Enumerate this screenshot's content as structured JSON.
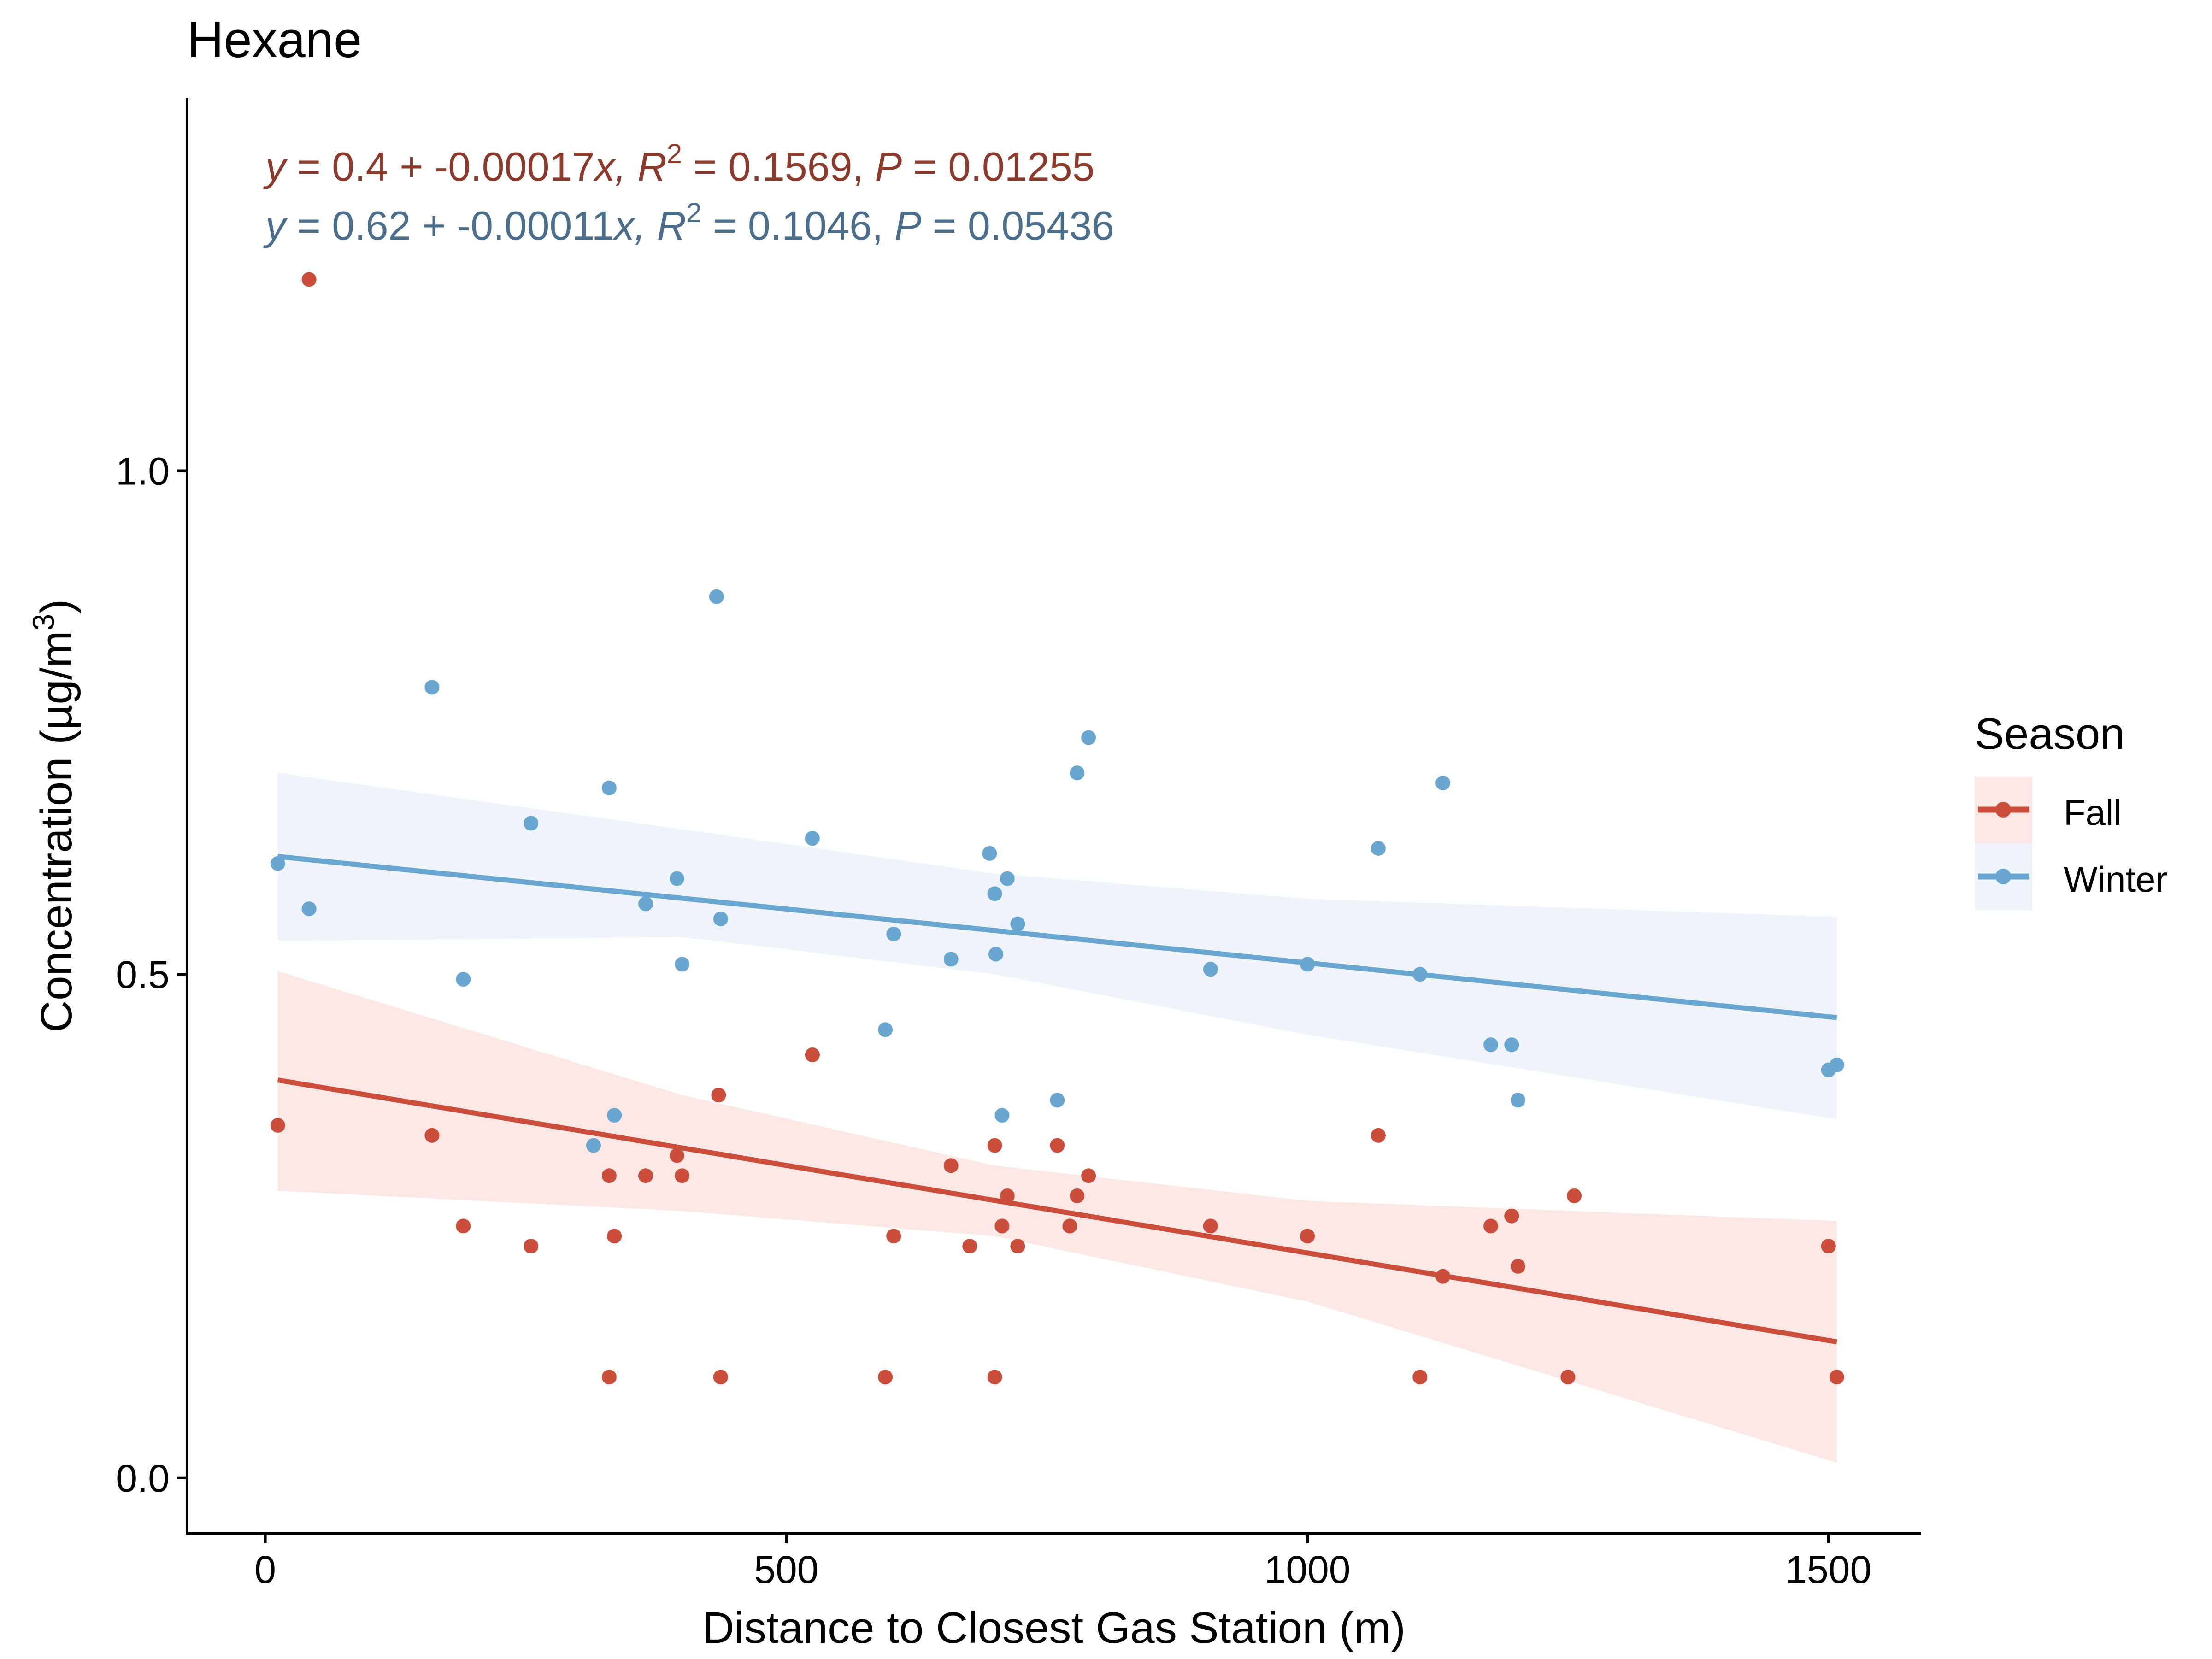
{
  "chart_data": {
    "type": "scatter",
    "title": "Hexane",
    "xlabel": "Distance to Closest Gas Station (m)",
    "ylabel": "Concentration (µg/m³)",
    "ylabel_base": "Concentration (µg/m",
    "ylabel_sup": "3",
    "ylabel_close": ")",
    "xlim": [
      -75,
      1585
    ],
    "ylim": [
      -0.055,
      1.37
    ],
    "x_ticks": [
      0,
      500,
      1000,
      1500
    ],
    "x_tick_labels": [
      "0",
      "500",
      "1000",
      "1500"
    ],
    "y_ticks": [
      0.0,
      0.5,
      1.0
    ],
    "y_tick_labels": [
      "0.0",
      "0.5",
      "1.0"
    ],
    "grid": false,
    "legend": {
      "title": "Season",
      "position": "right",
      "entries": [
        "Fall",
        "Winter"
      ]
    },
    "annotations": {
      "fall": {
        "y_sym": "y",
        "eq": " = 0.4 + -0.00017",
        "x_sym": "x",
        "r_sym": ",  R",
        "r_sup": "2",
        "r_val": " = 0.1569,  ",
        "p_sym": "P",
        "p_val": " = 0.01255"
      },
      "winter": {
        "y_sym": "y",
        "eq": " = 0.62 + -0.00011",
        "x_sym": "x",
        "r_sym": ",  R",
        "r_sup": "2",
        "r_val": " = 0.1046,  ",
        "p_sym": "P",
        "p_val": " = 0.05436"
      }
    },
    "series": [
      {
        "name": "Fall",
        "color": "#cb4e3c",
        "band_color": "#fbe8e5",
        "text_color": "#8b3a2c",
        "fit": {
          "x0": 12,
          "y0": 0.395,
          "x1": 1508,
          "y1": 0.135
        },
        "band": {
          "x": [
            12,
            400,
            700,
            1000,
            1508
          ],
          "upper": [
            0.503,
            0.38,
            0.31,
            0.275,
            0.255
          ],
          "lower": [
            0.285,
            0.265,
            0.24,
            0.175,
            0.015
          ]
        },
        "points": [
          [
            12,
            0.35
          ],
          [
            42,
            1.19
          ],
          [
            160,
            0.34
          ],
          [
            190,
            0.25
          ],
          [
            255,
            0.23
          ],
          [
            330,
            0.3
          ],
          [
            330,
            0.1
          ],
          [
            335,
            0.24
          ],
          [
            365,
            0.3
          ],
          [
            395,
            0.32
          ],
          [
            400,
            0.3
          ],
          [
            435,
            0.38
          ],
          [
            437,
            0.1
          ],
          [
            525,
            0.42
          ],
          [
            595,
            0.1
          ],
          [
            603,
            0.24
          ],
          [
            658,
            0.31
          ],
          [
            676,
            0.23
          ],
          [
            700,
            0.33
          ],
          [
            700,
            0.1
          ],
          [
            707,
            0.25
          ],
          [
            712,
            0.28
          ],
          [
            722,
            0.23
          ],
          [
            760,
            0.33
          ],
          [
            772,
            0.25
          ],
          [
            779,
            0.28
          ],
          [
            790,
            0.3
          ],
          [
            907,
            0.25
          ],
          [
            1000,
            0.24
          ],
          [
            1068,
            0.34
          ],
          [
            1108,
            0.1
          ],
          [
            1130,
            0.2
          ],
          [
            1176,
            0.25
          ],
          [
            1196,
            0.26
          ],
          [
            1202,
            0.21
          ],
          [
            1250,
            0.1
          ],
          [
            1256,
            0.28
          ],
          [
            1500,
            0.23
          ],
          [
            1508,
            0.1
          ]
        ]
      },
      {
        "name": "Winter",
        "color": "#6aa7d0",
        "band_color": "#eef4f9",
        "text_color": "#4a6e8c",
        "fit": {
          "x0": 12,
          "y0": 0.617,
          "x1": 1508,
          "y1": 0.457
        },
        "band": {
          "x": [
            12,
            400,
            700,
            1000,
            1508
          ],
          "upper": [
            0.7,
            0.644,
            0.6,
            0.575,
            0.557
          ],
          "lower": [
            0.533,
            0.537,
            0.5,
            0.44,
            0.356
          ]
        },
        "points": [
          [
            12,
            0.61
          ],
          [
            42,
            0.565
          ],
          [
            160,
            0.785
          ],
          [
            190,
            0.495
          ],
          [
            255,
            0.65
          ],
          [
            315,
            0.33
          ],
          [
            330,
            0.685
          ],
          [
            335,
            0.36
          ],
          [
            365,
            0.57
          ],
          [
            395,
            0.595
          ],
          [
            400,
            0.51
          ],
          [
            433,
            0.875
          ],
          [
            437,
            0.555
          ],
          [
            525,
            0.635
          ],
          [
            595,
            0.445
          ],
          [
            603,
            0.54
          ],
          [
            658,
            0.515
          ],
          [
            695,
            0.62
          ],
          [
            700,
            0.58
          ],
          [
            701,
            0.52
          ],
          [
            707,
            0.36
          ],
          [
            712,
            0.595
          ],
          [
            722,
            0.55
          ],
          [
            760,
            0.375
          ],
          [
            779,
            0.7
          ],
          [
            790,
            0.735
          ],
          [
            907,
            0.505
          ],
          [
            1000,
            0.51
          ],
          [
            1068,
            0.625
          ],
          [
            1108,
            0.5
          ],
          [
            1130,
            0.69
          ],
          [
            1176,
            0.43
          ],
          [
            1196,
            0.43
          ],
          [
            1202,
            0.375
          ],
          [
            1500,
            0.405
          ],
          [
            1508,
            0.41
          ]
        ]
      }
    ]
  }
}
